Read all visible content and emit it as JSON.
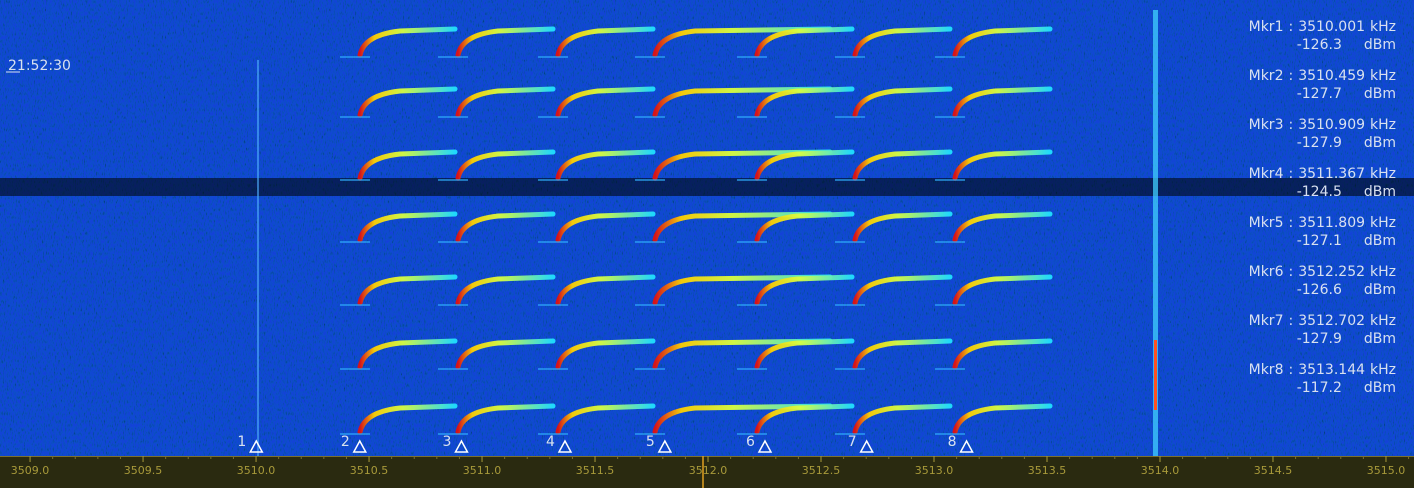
{
  "timestamp": "21:52:30",
  "frequency_axis": {
    "xlim": [
      3508.867,
      3515.124
    ],
    "ticks": [
      {
        "value": 3509,
        "label": "3509.0"
      },
      {
        "value": 3509.5,
        "label": "3509.5"
      },
      {
        "value": 3510,
        "label": "3510.0"
      },
      {
        "value": 3510.5,
        "label": "3510.5"
      },
      {
        "value": 3511,
        "label": "3511.0"
      },
      {
        "value": 3511.5,
        "label": "3511.5"
      },
      {
        "value": 3512,
        "label": "3512.0"
      },
      {
        "value": 3512.5,
        "label": "3512.5"
      },
      {
        "value": 3513,
        "label": "3513.0"
      },
      {
        "value": 3513.5,
        "label": "3513.5"
      },
      {
        "value": 3514,
        "label": "3514.0"
      },
      {
        "value": 3514.5,
        "label": "3514.5"
      },
      {
        "value": 3515,
        "label": "3515.0"
      }
    ]
  },
  "markers": [
    {
      "number": 1,
      "name": "Mkr1",
      "separator": ":",
      "frequency": 3510.001,
      "frequency_unit": "kHz",
      "level": -126.3,
      "level_unit": "dBm"
    },
    {
      "number": 2,
      "name": "Mkr2",
      "separator": ":",
      "frequency": 3510.459,
      "frequency_unit": "kHz",
      "level": -127.7,
      "level_unit": "dBm"
    },
    {
      "number": 3,
      "name": "Mkr3",
      "separator": ":",
      "frequency": 3510.909,
      "frequency_unit": "kHz",
      "level": -127.9,
      "level_unit": "dBm"
    },
    {
      "number": 4,
      "name": "Mkr4",
      "separator": ":",
      "frequency": 3511.367,
      "frequency_unit": "kHz",
      "level": -124.5,
      "level_unit": "dBm"
    },
    {
      "number": 5,
      "name": "Mkr5",
      "separator": ":",
      "frequency": 3511.809,
      "frequency_unit": "kHz",
      "level": -127.1,
      "level_unit": "dBm"
    },
    {
      "number": 6,
      "name": "Mkr6",
      "separator": ":",
      "frequency": 3512.252,
      "frequency_unit": "kHz",
      "level": -126.6,
      "level_unit": "dBm"
    },
    {
      "number": 7,
      "name": "Mkr7",
      "separator": ":",
      "frequency": 3512.702,
      "frequency_unit": "kHz",
      "level": -127.9,
      "level_unit": "dBm"
    },
    {
      "number": 8,
      "name": "Mkr8",
      "separator": ":",
      "frequency": 3513.144,
      "frequency_unit": "kHz",
      "level": -117.2,
      "level_unit": "dBm"
    }
  ]
}
